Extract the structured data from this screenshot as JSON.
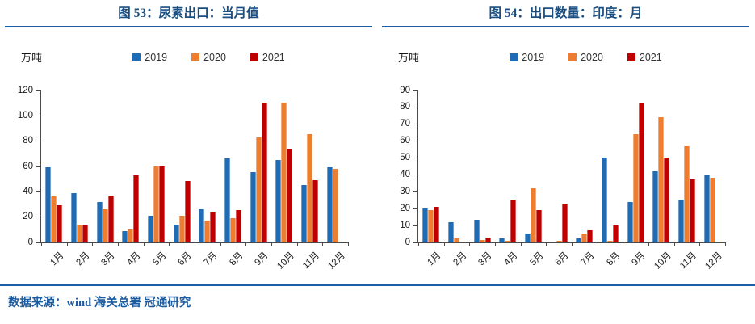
{
  "figures": [
    {
      "title": "图 53：尿素出口：当月值"
    },
    {
      "title": "图 54：出口数量：印度：月"
    }
  ],
  "chart_data": [
    {
      "type": "bar",
      "title": "图 53：尿素出口：当月值",
      "ylabel": "万吨",
      "xlabel": "",
      "categories": [
        "1月",
        "2月",
        "3月",
        "4月",
        "5月",
        "6月",
        "7月",
        "8月",
        "9月",
        "10月",
        "11月",
        "12月"
      ],
      "series": [
        {
          "name": "2019",
          "color": "#1F6CB4",
          "values": [
            59,
            39,
            32,
            9,
            21,
            14,
            26,
            66,
            55,
            65,
            45,
            59
          ]
        },
        {
          "name": "2020",
          "color": "#ED7D31",
          "values": [
            36,
            14,
            26,
            10,
            60,
            21,
            17,
            19,
            83,
            110,
            85,
            58
          ]
        },
        {
          "name": "2021",
          "color": "#C00000",
          "values": [
            29,
            14,
            37,
            53,
            60,
            48,
            24,
            25,
            110,
            74,
            49,
            null
          ]
        }
      ],
      "ylim": [
        0,
        120
      ],
      "ytick_step": 20,
      "grid": false,
      "legend_position": "top"
    },
    {
      "type": "bar",
      "title": "图 54：出口数量：印度：月",
      "ylabel": "万吨",
      "xlabel": "",
      "categories": [
        "1月",
        "2月",
        "3月",
        "4月",
        "5月",
        "6月",
        "7月",
        "8月",
        "9月",
        "10月",
        "11月",
        "12月"
      ],
      "series": [
        {
          "name": "2019",
          "color": "#1F6CB4",
          "values": [
            20,
            12,
            13,
            2,
            5,
            0,
            2,
            50,
            24,
            42,
            25,
            40
          ]
        },
        {
          "name": "2020",
          "color": "#ED7D31",
          "values": [
            19,
            2,
            1.5,
            1,
            32,
            1,
            5,
            1,
            64,
            74,
            57,
            38
          ]
        },
        {
          "name": "2021",
          "color": "#C00000",
          "values": [
            21,
            0,
            2.5,
            25,
            19,
            23,
            7,
            10,
            82,
            50,
            37,
            null
          ]
        }
      ],
      "ylim": [
        0,
        90
      ],
      "ytick_step": 10,
      "grid": false,
      "legend_position": "top"
    }
  ],
  "footer": {
    "text": "数据来源：wind  海关总署  冠通研究"
  },
  "colors": {
    "title_text": "#1B4F82",
    "rule": "#1D5FA6",
    "footer_text": "#1B5BA0",
    "axis": "#4a4a4a",
    "series_2019": "#1F6CB4",
    "series_2020": "#ED7D31",
    "series_2021": "#C00000"
  }
}
